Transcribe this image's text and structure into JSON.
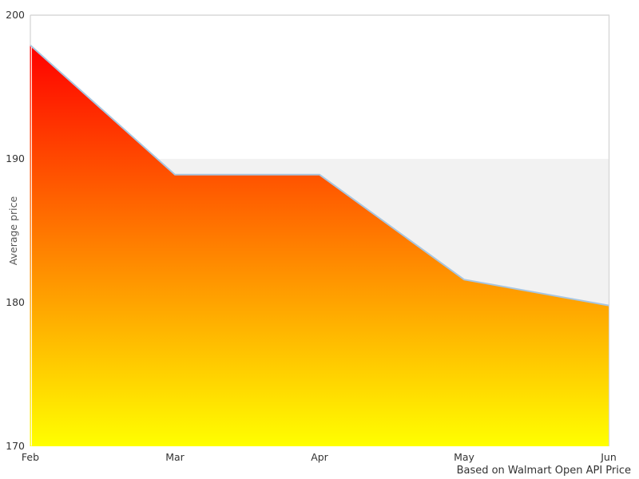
{
  "chart_data": {
    "type": "area",
    "title": "",
    "categories": [
      "Feb",
      "Mar",
      "Apr",
      "May",
      "Jun"
    ],
    "values": [
      197.9,
      188.9,
      188.9,
      181.6,
      179.8
    ],
    "xlabel": "",
    "ylabel": "Average price",
    "ylim": [
      170,
      200
    ],
    "yticks": [
      "200",
      "190",
      "180",
      "170"
    ],
    "ytick_values": [
      200,
      190,
      180,
      170
    ],
    "legend": "none",
    "grid": "top border line only",
    "band": {
      "from": 170,
      "to": 190,
      "color": "#f2f2f2"
    },
    "caption": "Based on Walmart Open API Price",
    "colors": {
      "area_gradient_top": "#ff0000",
      "area_gradient_bottom": "#ffff00",
      "line": "#a8c6e0",
      "band": "#f2f2f2",
      "border": "#d9d9d9",
      "axis_line": "#c9c9c9",
      "tick_text": "#333333",
      "ylabel_text": "#555555",
      "caption_text": "#333333"
    }
  }
}
